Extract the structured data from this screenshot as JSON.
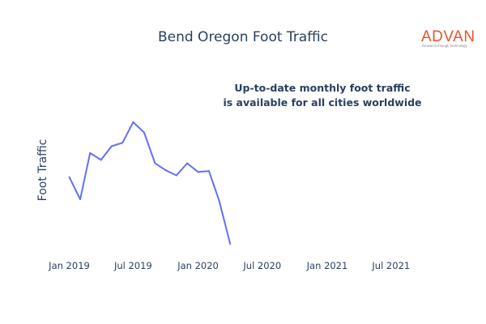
{
  "chart_data": {
    "type": "line",
    "title": "Bend Oregon Foot Traffic",
    "ylabel": "Foot Traffic",
    "xlabel": "",
    "annotation_lines": [
      "Up-to-date monthly foot traffic",
      "is available for all cities worldwide"
    ],
    "x_range": [
      "2018-12-01",
      "2021-10-15"
    ],
    "y_range": [
      0.2,
      10.4
    ],
    "y_ticks_visible": false,
    "grid": false,
    "legend": "none",
    "x_ticks": [
      {
        "date": "2019-01-01",
        "label": "Jan 2019"
      },
      {
        "date": "2019-07-01",
        "label": "Jul 2019"
      },
      {
        "date": "2020-01-01",
        "label": "Jan 2020"
      },
      {
        "date": "2020-07-01",
        "label": "Jul 2020"
      },
      {
        "date": "2021-01-01",
        "label": "Jan 2021"
      },
      {
        "date": "2021-07-01",
        "label": "Jul 2021"
      }
    ],
    "series": [
      {
        "color": "#636efa",
        "points": [
          {
            "x": "2019-01-01",
            "y": 4.8
          },
          {
            "x": "2019-02-01",
            "y": 3.5
          },
          {
            "x": "2019-03-01",
            "y": 6.2
          },
          {
            "x": "2019-04-01",
            "y": 5.8
          },
          {
            "x": "2019-05-01",
            "y": 6.6
          },
          {
            "x": "2019-06-01",
            "y": 6.8
          },
          {
            "x": "2019-07-01",
            "y": 8.0
          },
          {
            "x": "2019-08-01",
            "y": 7.4
          },
          {
            "x": "2019-09-01",
            "y": 5.6
          },
          {
            "x": "2019-10-01",
            "y": 5.2
          },
          {
            "x": "2019-11-01",
            "y": 4.9
          },
          {
            "x": "2019-12-01",
            "y": 5.6
          },
          {
            "x": "2020-01-01",
            "y": 5.1
          },
          {
            "x": "2020-02-01",
            "y": 5.15
          },
          {
            "x": "2020-03-01",
            "y": 3.4
          },
          {
            "x": "2020-04-01",
            "y": 0.9
          }
        ]
      }
    ]
  },
  "logo": {
    "brand": "ADVAN",
    "tagline": "Research through Technology",
    "color": "#e8552a"
  }
}
